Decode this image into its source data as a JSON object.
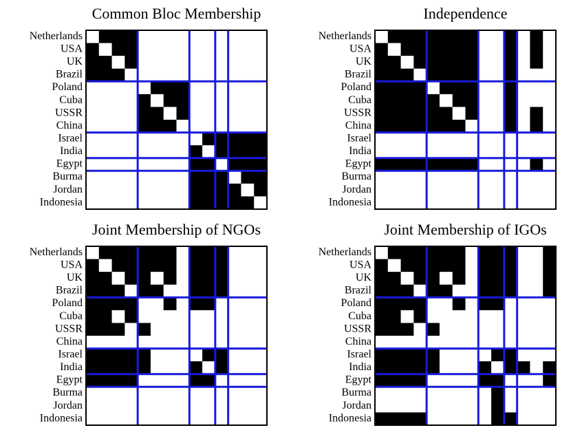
{
  "chart_data": [
    {
      "type": "matrix",
      "title": "Common Bloc Membership",
      "labels": [
        "Netherlands",
        "USA",
        "UK",
        "Brazil",
        "Poland",
        "Cuba",
        "USSR",
        "China",
        "Israel",
        "India",
        "Egypt",
        "Burma",
        "Jordan",
        "Indonesia"
      ],
      "partition": [
        4,
        8,
        10,
        11
      ],
      "matrix": [
        [
          0,
          1,
          1,
          1,
          0,
          0,
          0,
          0,
          0,
          0,
          0,
          0,
          0,
          0
        ],
        [
          1,
          0,
          1,
          1,
          0,
          0,
          0,
          0,
          0,
          0,
          0,
          0,
          0,
          0
        ],
        [
          1,
          1,
          0,
          1,
          0,
          0,
          0,
          0,
          0,
          0,
          0,
          0,
          0,
          0
        ],
        [
          1,
          1,
          1,
          0,
          0,
          0,
          0,
          0,
          0,
          0,
          0,
          0,
          0,
          0
        ],
        [
          0,
          0,
          0,
          0,
          0,
          1,
          1,
          1,
          0,
          0,
          0,
          0,
          0,
          0
        ],
        [
          0,
          0,
          0,
          0,
          1,
          0,
          1,
          1,
          0,
          0,
          0,
          0,
          0,
          0
        ],
        [
          0,
          0,
          0,
          0,
          1,
          1,
          0,
          1,
          0,
          0,
          0,
          0,
          0,
          0
        ],
        [
          0,
          0,
          0,
          0,
          1,
          1,
          1,
          0,
          0,
          0,
          0,
          0,
          0,
          0
        ],
        [
          0,
          0,
          0,
          0,
          0,
          0,
          0,
          0,
          0,
          1,
          1,
          1,
          1,
          1
        ],
        [
          0,
          0,
          0,
          0,
          0,
          0,
          0,
          0,
          1,
          0,
          1,
          1,
          1,
          1
        ],
        [
          0,
          0,
          0,
          0,
          0,
          0,
          0,
          0,
          1,
          1,
          0,
          1,
          1,
          1
        ],
        [
          0,
          0,
          0,
          0,
          0,
          0,
          0,
          0,
          1,
          1,
          1,
          0,
          1,
          1
        ],
        [
          0,
          0,
          0,
          0,
          0,
          0,
          0,
          0,
          1,
          1,
          1,
          1,
          0,
          1
        ],
        [
          0,
          0,
          0,
          0,
          0,
          0,
          0,
          0,
          1,
          1,
          1,
          1,
          1,
          0
        ]
      ]
    },
    {
      "type": "matrix",
      "title": "Independence",
      "labels": [
        "Netherlands",
        "USA",
        "UK",
        "Brazil",
        "Poland",
        "Cuba",
        "USSR",
        "China",
        "Israel",
        "India",
        "Egypt",
        "Burma",
        "Jordan",
        "Indonesia"
      ],
      "partition": [
        4,
        8,
        10,
        11
      ],
      "matrix": [
        [
          0,
          1,
          1,
          1,
          1,
          1,
          1,
          1,
          0,
          0,
          1,
          0,
          1,
          0
        ],
        [
          1,
          0,
          1,
          1,
          1,
          1,
          1,
          1,
          0,
          0,
          1,
          0,
          1,
          0
        ],
        [
          1,
          1,
          0,
          1,
          1,
          1,
          1,
          1,
          0,
          0,
          1,
          0,
          1,
          0
        ],
        [
          1,
          1,
          1,
          0,
          1,
          1,
          1,
          1,
          0,
          0,
          1,
          0,
          0,
          0
        ],
        [
          1,
          1,
          1,
          1,
          0,
          1,
          1,
          1,
          0,
          0,
          1,
          0,
          0,
          0
        ],
        [
          1,
          1,
          1,
          1,
          1,
          0,
          1,
          1,
          0,
          0,
          1,
          0,
          0,
          0
        ],
        [
          1,
          1,
          1,
          1,
          1,
          1,
          0,
          1,
          0,
          0,
          1,
          0,
          1,
          0
        ],
        [
          1,
          1,
          1,
          1,
          1,
          1,
          1,
          0,
          0,
          0,
          1,
          0,
          1,
          0
        ],
        [
          0,
          0,
          0,
          0,
          0,
          0,
          0,
          0,
          0,
          0,
          0,
          0,
          0,
          0
        ],
        [
          0,
          0,
          0,
          0,
          0,
          0,
          0,
          0,
          0,
          0,
          0,
          0,
          0,
          0
        ],
        [
          1,
          1,
          1,
          1,
          1,
          1,
          1,
          1,
          0,
          0,
          0,
          0,
          1,
          0
        ],
        [
          0,
          0,
          0,
          0,
          0,
          0,
          0,
          0,
          0,
          0,
          0,
          0,
          0,
          0
        ],
        [
          0,
          0,
          0,
          0,
          0,
          0,
          0,
          0,
          0,
          0,
          0,
          0,
          0,
          0
        ],
        [
          0,
          0,
          0,
          0,
          0,
          0,
          0,
          0,
          0,
          0,
          0,
          0,
          0,
          0
        ]
      ]
    },
    {
      "type": "matrix",
      "title": "Joint Membership of NGOs",
      "labels": [
        "Netherlands",
        "USA",
        "UK",
        "Brazil",
        "Poland",
        "Cuba",
        "USSR",
        "China",
        "Israel",
        "India",
        "Egypt",
        "Burma",
        "Jordan",
        "Indonesia"
      ],
      "partition": [
        4,
        8,
        10,
        11
      ],
      "matrix": [
        [
          0,
          1,
          1,
          1,
          1,
          1,
          1,
          0,
          1,
          1,
          1,
          0,
          0,
          0
        ],
        [
          1,
          0,
          1,
          1,
          1,
          1,
          1,
          0,
          1,
          1,
          1,
          0,
          0,
          0
        ],
        [
          1,
          1,
          0,
          1,
          1,
          0,
          1,
          0,
          1,
          1,
          1,
          0,
          0,
          0
        ],
        [
          1,
          1,
          1,
          0,
          1,
          1,
          0,
          0,
          1,
          1,
          1,
          0,
          0,
          0
        ],
        [
          1,
          1,
          1,
          1,
          0,
          0,
          1,
          0,
          1,
          1,
          0,
          0,
          0,
          0
        ],
        [
          1,
          1,
          0,
          1,
          0,
          0,
          0,
          0,
          0,
          0,
          0,
          0,
          0,
          0
        ],
        [
          1,
          1,
          1,
          0,
          1,
          0,
          0,
          0,
          0,
          0,
          0,
          0,
          0,
          0
        ],
        [
          0,
          0,
          0,
          0,
          0,
          0,
          0,
          0,
          0,
          0,
          0,
          0,
          0,
          0
        ],
        [
          1,
          1,
          1,
          1,
          1,
          0,
          0,
          0,
          0,
          1,
          1,
          0,
          0,
          0
        ],
        [
          1,
          1,
          1,
          1,
          1,
          0,
          0,
          0,
          1,
          0,
          1,
          0,
          0,
          0
        ],
        [
          1,
          1,
          1,
          1,
          0,
          0,
          0,
          0,
          1,
          1,
          0,
          0,
          0,
          0
        ],
        [
          0,
          0,
          0,
          0,
          0,
          0,
          0,
          0,
          0,
          0,
          0,
          0,
          0,
          0
        ],
        [
          0,
          0,
          0,
          0,
          0,
          0,
          0,
          0,
          0,
          0,
          0,
          0,
          0,
          0
        ],
        [
          0,
          0,
          0,
          0,
          0,
          0,
          0,
          0,
          0,
          0,
          0,
          0,
          0,
          0
        ]
      ]
    },
    {
      "type": "matrix",
      "title": "Joint Membership of IGOs",
      "labels": [
        "Netherlands",
        "USA",
        "UK",
        "Brazil",
        "Poland",
        "Cuba",
        "USSR",
        "China",
        "Israel",
        "India",
        "Egypt",
        "Burma",
        "Jordan",
        "Indonesia"
      ],
      "partition": [
        4,
        8,
        10,
        11
      ],
      "matrix": [
        [
          0,
          1,
          1,
          1,
          1,
          1,
          1,
          0,
          1,
          1,
          1,
          0,
          0,
          1
        ],
        [
          1,
          0,
          1,
          1,
          1,
          1,
          1,
          0,
          1,
          1,
          1,
          0,
          0,
          1
        ],
        [
          1,
          1,
          0,
          1,
          1,
          0,
          1,
          0,
          1,
          1,
          1,
          0,
          0,
          1
        ],
        [
          1,
          1,
          1,
          0,
          1,
          1,
          0,
          0,
          1,
          1,
          1,
          0,
          0,
          1
        ],
        [
          1,
          1,
          1,
          1,
          0,
          0,
          1,
          0,
          1,
          1,
          0,
          0,
          0,
          0
        ],
        [
          1,
          1,
          0,
          1,
          0,
          0,
          0,
          0,
          0,
          0,
          0,
          0,
          0,
          0
        ],
        [
          1,
          1,
          1,
          0,
          1,
          0,
          0,
          0,
          0,
          0,
          0,
          0,
          0,
          0
        ],
        [
          0,
          0,
          0,
          0,
          0,
          0,
          0,
          0,
          0,
          0,
          0,
          0,
          0,
          0
        ],
        [
          1,
          1,
          1,
          1,
          1,
          0,
          0,
          0,
          0,
          1,
          1,
          0,
          0,
          0
        ],
        [
          1,
          1,
          1,
          1,
          1,
          0,
          0,
          0,
          1,
          0,
          1,
          1,
          0,
          1
        ],
        [
          1,
          1,
          1,
          1,
          0,
          0,
          0,
          0,
          1,
          1,
          0,
          0,
          0,
          1
        ],
        [
          0,
          0,
          0,
          0,
          0,
          0,
          0,
          0,
          0,
          1,
          0,
          0,
          0,
          0
        ],
        [
          0,
          0,
          0,
          0,
          0,
          0,
          0,
          0,
          0,
          1,
          0,
          0,
          0,
          0
        ],
        [
          1,
          1,
          1,
          1,
          0,
          0,
          0,
          0,
          0,
          1,
          1,
          0,
          0,
          0
        ]
      ]
    }
  ]
}
